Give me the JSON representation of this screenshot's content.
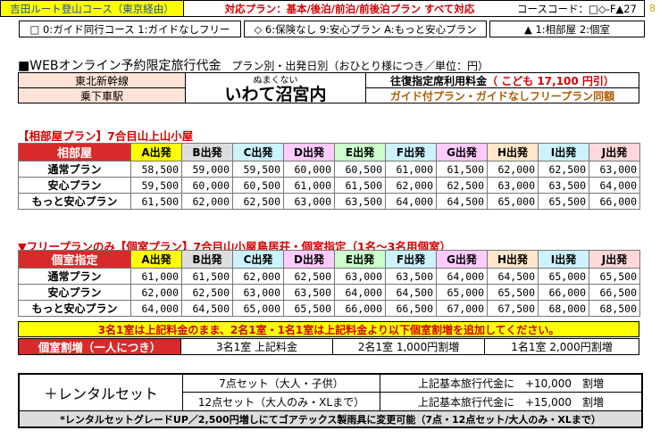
{
  "top": {
    "route": "吉田ルート登山コース（東京経由）",
    "plans": "対応プラン：基本/後泊/前泊/前後泊プラン すべて対応",
    "course_code": "コースコード：□◇-F▲27",
    "page_no": "8"
  },
  "codes": {
    "guide": "□ 0:ガイド同行コース 1:ガイドなしフリー",
    "insurance": "◇ 6:保険なし 9:安心プラン A:もっと安心プラン",
    "room": "▲ 1:相部屋 2:個室"
  },
  "heading": {
    "main": "■WEBオンライン予約限定旅行代金",
    "sub": "プラン別・出発日別（おひとり様につき／単位：円）"
  },
  "station": {
    "line": "東北新幹線",
    "board": "乗下車駅",
    "reading": "ぬまくない",
    "name": "いわて沼宮内",
    "fare_label": "往復指定席利用料金",
    "fare_child": "（ こども 17,100 円引）",
    "guide_note": "ガイド付プラン・ガイドなしフリープラン同額"
  },
  "colors": {
    "header_red": "#d82a2a",
    "dep": [
      "#ffff00",
      "#dddddd",
      "#ccf2ff",
      "#ffccff",
      "#ccffcc",
      "#ccf2ff",
      "#ffccff",
      "#ffe7cc",
      "#ccf2ff",
      "#ffd9d9"
    ]
  },
  "shared_table": {
    "title": "【相部屋プラン】7合目山上山小屋",
    "corner": "相部屋",
    "departures": [
      "A出発",
      "B出発",
      "C出発",
      "D出発",
      "E出発",
      "F出発",
      "G出発",
      "H出発",
      "I出発",
      "J出発"
    ],
    "rows": [
      {
        "label": "通常プラン",
        "values": [
          "58,500",
          "59,000",
          "59,500",
          "60,000",
          "60,500",
          "61,000",
          "61,500",
          "62,000",
          "62,500",
          "63,000"
        ]
      },
      {
        "label": "安心プラン",
        "values": [
          "59,500",
          "60,000",
          "60,500",
          "61,000",
          "61,500",
          "62,000",
          "62,500",
          "63,000",
          "63,500",
          "64,000"
        ]
      },
      {
        "label": "もっと安心プラン",
        "values": [
          "61,500",
          "62,000",
          "62,500",
          "63,000",
          "63,500",
          "64,000",
          "64,500",
          "65,000",
          "65,500",
          "66,000"
        ]
      }
    ]
  },
  "private_table": {
    "title": "▼フリープランのみ【個室プラン】7合目山小屋鳥居荘・個室指定（1名～3名用個室）",
    "corner": "個室指定",
    "departures": [
      "A出発",
      "B出発",
      "C出発",
      "D出発",
      "E出発",
      "F出発",
      "G出発",
      "H出発",
      "I出発",
      "J出発"
    ],
    "rows": [
      {
        "label": "通常プラン",
        "values": [
          "61,000",
          "61,500",
          "62,000",
          "62,500",
          "63,000",
          "63,500",
          "64,000",
          "64,500",
          "65,000",
          "65,500"
        ]
      },
      {
        "label": "安心プラン",
        "values": [
          "62,000",
          "62,500",
          "63,000",
          "63,500",
          "64,000",
          "64,500",
          "65,000",
          "65,500",
          "66,000",
          "66,500"
        ]
      },
      {
        "label": "もっと安心プラン",
        "values": [
          "64,000",
          "64,500",
          "65,000",
          "65,500",
          "66,000",
          "66,500",
          "67,000",
          "67,500",
          "68,000",
          "68,500"
        ]
      }
    ],
    "note": "3名1室は上記料金のまま、2名1室・1名1室は上記料金より以下個室割増を追加してください。"
  },
  "surcharge": {
    "label": "個室割増（一人につき）",
    "three": "3名1室 上記料金",
    "two": "2名1室 1,000円割増",
    "one": "1名1室 2,000円割増"
  },
  "rental": {
    "title": "＋レンタルセット",
    "row1_set": "7点セット（大人・子供）",
    "row1_price": "上記基本旅行代金に　+10,000　割増",
    "row2_set": "12点セット（大人のみ・XLまで）",
    "row2_price": "上記基本旅行代金に　+15,000　割増",
    "footer": "*レンタルセットグレードUP／2,500円増しにてゴアテックス製雨具に変更可能（7点・12点セット/大人のみ・XLまで）"
  }
}
